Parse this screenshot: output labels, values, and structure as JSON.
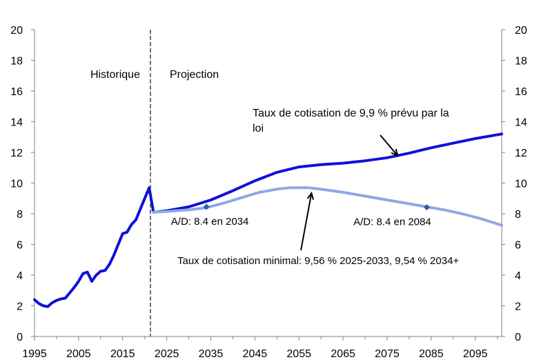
{
  "chart_data": {
    "type": "line",
    "xlim": [
      1995,
      2101
    ],
    "ylim": [
      0,
      20
    ],
    "x_ticks": [
      "1995",
      "2005",
      "2015",
      "2025",
      "2035",
      "2045",
      "2055",
      "2065",
      "2075",
      "2085",
      "2095"
    ],
    "y_ticks": [
      "0",
      "2",
      "4",
      "6",
      "8",
      "10",
      "12",
      "14",
      "16",
      "18",
      "20"
    ],
    "grid": false,
    "divider_year": 2021.3,
    "region_labels": {
      "historical": "Historique",
      "projection": "Projection"
    },
    "series": [
      {
        "key": "historical",
        "color": "#1010d8",
        "points": [
          [
            1995,
            2.4
          ],
          [
            1996,
            2.15
          ],
          [
            1997,
            2.0
          ],
          [
            1998,
            1.95
          ],
          [
            1999,
            2.2
          ],
          [
            2000,
            2.35
          ],
          [
            2001,
            2.45
          ],
          [
            2002,
            2.5
          ],
          [
            2003,
            2.85
          ],
          [
            2004,
            3.2
          ],
          [
            2005,
            3.6
          ],
          [
            2006,
            4.1
          ],
          [
            2007,
            4.2
          ],
          [
            2008,
            3.6
          ],
          [
            2009,
            4.0
          ],
          [
            2010,
            4.25
          ],
          [
            2011,
            4.3
          ],
          [
            2012,
            4.7
          ],
          [
            2013,
            5.3
          ],
          [
            2014,
            6.0
          ],
          [
            2015,
            6.7
          ],
          [
            2016,
            6.8
          ],
          [
            2017,
            7.3
          ],
          [
            2018,
            7.6
          ],
          [
            2019,
            8.3
          ],
          [
            2020,
            9.0
          ],
          [
            2021,
            9.7
          ],
          [
            2022,
            8.1
          ]
        ]
      },
      {
        "key": "legislated",
        "color": "#1010d8",
        "points": [
          [
            2022,
            8.1
          ],
          [
            2025,
            8.2
          ],
          [
            2030,
            8.45
          ],
          [
            2035,
            8.9
          ],
          [
            2040,
            9.5
          ],
          [
            2045,
            10.15
          ],
          [
            2050,
            10.7
          ],
          [
            2055,
            11.05
          ],
          [
            2060,
            11.2
          ],
          [
            2065,
            11.3
          ],
          [
            2070,
            11.45
          ],
          [
            2075,
            11.65
          ],
          [
            2080,
            11.95
          ],
          [
            2085,
            12.3
          ],
          [
            2090,
            12.6
          ],
          [
            2095,
            12.9
          ],
          [
            2101,
            13.2
          ]
        ]
      },
      {
        "key": "minimum",
        "color": "#8ea8e6",
        "points": [
          [
            2022,
            8.1
          ],
          [
            2025,
            8.15
          ],
          [
            2030,
            8.25
          ],
          [
            2034,
            8.4
          ],
          [
            2038,
            8.7
          ],
          [
            2042,
            9.05
          ],
          [
            2046,
            9.4
          ],
          [
            2050,
            9.6
          ],
          [
            2053,
            9.7
          ],
          [
            2057,
            9.7
          ],
          [
            2060,
            9.6
          ],
          [
            2065,
            9.4
          ],
          [
            2070,
            9.15
          ],
          [
            2075,
            8.9
          ],
          [
            2080,
            8.65
          ],
          [
            2084,
            8.45
          ],
          [
            2088,
            8.25
          ],
          [
            2092,
            8.0
          ],
          [
            2096,
            7.7
          ],
          [
            2101,
            7.25
          ]
        ]
      }
    ],
    "markers": [
      {
        "x": 2034,
        "y": 8.45,
        "label": "A/D: 8.4 en 2034"
      },
      {
        "x": 2084,
        "y": 8.42,
        "label": "A/D: 8.4 en 2084"
      }
    ],
    "annotations": [
      {
        "key": "legislated",
        "line1": "Taux de cotisation de 9,9 % prévu par la",
        "line2": "loi",
        "arrow_to": [
          2078,
          11.7
        ]
      },
      {
        "key": "minimum",
        "line1": "Taux de cotisation minimal: 9,56 % 2025-2033, 9,54 % 2034+",
        "arrow_to": [
          2058,
          8.9
        ]
      }
    ],
    "colors": {
      "axis": "#7f7f7f",
      "divider": "#707070",
      "marker": "#2a5c9e"
    }
  }
}
